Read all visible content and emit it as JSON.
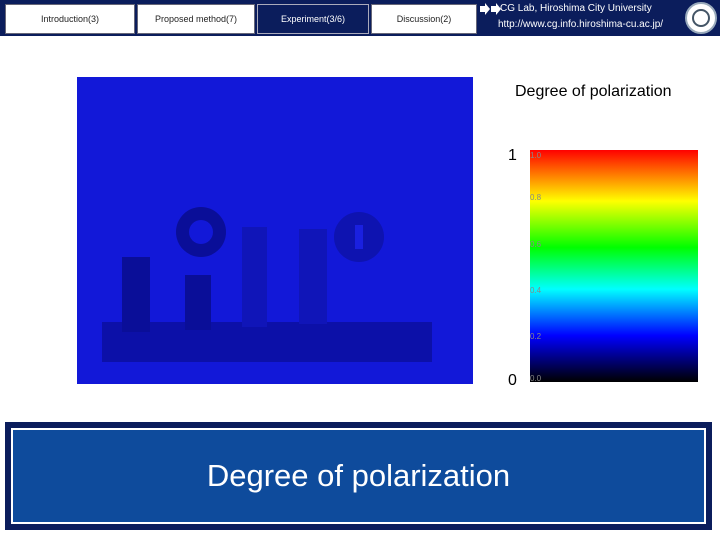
{
  "nav": {
    "tabs": [
      "Introduction(3)",
      "Proposed method(7)",
      "Experiment(3/6)",
      "Discussion(2)"
    ],
    "lab": "CG Lab, Hiroshima City University",
    "url": "http://www.cg.info.hiroshima-cu.ac.jp/"
  },
  "figure": {
    "heading": "Degree of polarization",
    "max_label": "1",
    "min_label": "0",
    "scale_labels": [
      "1.0",
      "0.8",
      "0.6",
      "0.4",
      "0.2",
      "0.0"
    ]
  },
  "footer": {
    "title": "Degree of polarization"
  }
}
